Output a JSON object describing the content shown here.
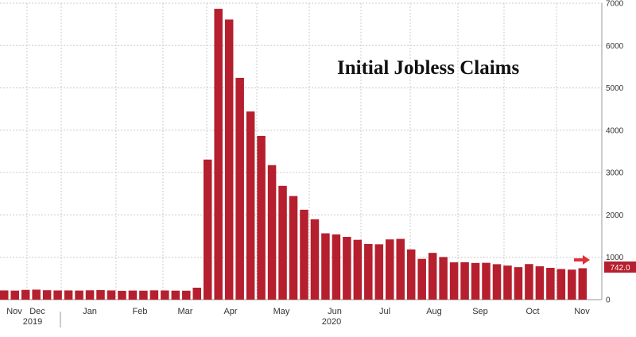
{
  "chart_data": {
    "type": "bar",
    "title": "Initial Jobless Claims",
    "xlabel": "",
    "ylabel": "",
    "ylim": [
      0,
      7000
    ],
    "y_ticks": [
      "0",
      "1000",
      "2000",
      "3000",
      "4000",
      "5000",
      "6000",
      "7000"
    ],
    "grid": true,
    "bar_color": "#b51f2e",
    "last_value_label": "742.0",
    "months": [
      "Nov",
      "Dec",
      "Jan",
      "Feb",
      "Mar",
      "Apr",
      "May",
      "Jun",
      "Jul",
      "Aug",
      "Sep",
      "Oct",
      "Nov"
    ],
    "years": [
      "2019",
      "2020"
    ],
    "values": [
      217,
      213,
      230,
      236,
      222,
      216,
      217,
      214,
      220,
      225,
      217,
      208,
      214,
      211,
      219,
      216,
      212,
      211,
      282,
      3307,
      6867,
      6615,
      5237,
      4442,
      3867,
      3176,
      2687,
      2446,
      2123,
      1897,
      1566,
      1540,
      1482,
      1413,
      1314,
      1307,
      1422,
      1435,
      1186,
      963,
      1104,
      1006,
      881,
      884,
      866,
      870,
      837,
      804,
      767,
      840,
      787,
      751,
      723,
      709,
      742
    ]
  }
}
